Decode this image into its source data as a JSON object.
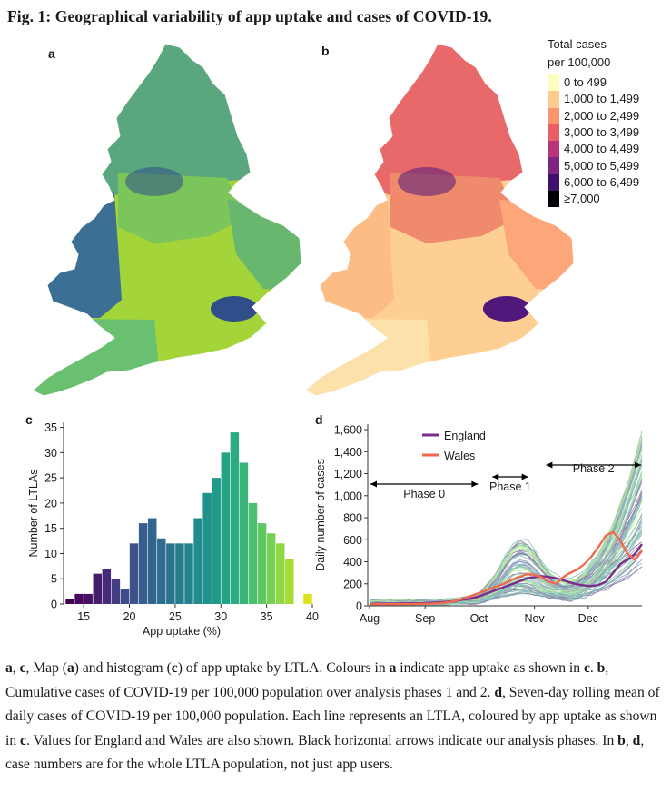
{
  "figure": {
    "title": "Fig. 1: Geographical variability of app uptake and cases of COVID-19.",
    "panel_labels": {
      "a": "a",
      "b": "b",
      "c": "c",
      "d": "d"
    }
  },
  "map_b_legend": {
    "title_line1": "Total cases",
    "title_line2": "per 100,000",
    "items": [
      {
        "label": "0 to 499",
        "color": "#fcfdbf"
      },
      {
        "label": "1,000 to 1,499",
        "color": "#fecb8f"
      },
      {
        "label": "2,000 to 2,499",
        "color": "#fb9570"
      },
      {
        "label": "3,000 to 3,499",
        "color": "#e85f66"
      },
      {
        "label": "4,000 to 4,499",
        "color": "#b63679"
      },
      {
        "label": "5,000 to 5,499",
        "color": "#7e2482"
      },
      {
        "label": "6,000 to 6,499",
        "color": "#40106d"
      },
      {
        "label": "≥7,000",
        "color": "#000004"
      }
    ]
  },
  "maps": {
    "a_colors": {
      "wales": "#3b6f94",
      "north": "#5aa67e",
      "midlands": "#7cc55b",
      "south": "#a3d43a",
      "east": "#69b66e",
      "southwest": "#68c070",
      "london": "#2f4e8a"
    },
    "b_colors": {
      "wales": "#fdbc84",
      "north": "#e8696a",
      "midlands": "#f08a6c",
      "south": "#fdcf93",
      "east": "#fca679",
      "southwest": "#fde1aa",
      "london": "#50187a"
    }
  },
  "chart_data": [
    {
      "type": "bar",
      "id": "c",
      "title": "",
      "xlabel": "App uptake (%)",
      "ylabel": "Number of LTLAs",
      "xlim": [
        13,
        40
      ],
      "ylim": [
        0,
        36
      ],
      "xticks": [
        15,
        20,
        25,
        30,
        35,
        40
      ],
      "yticks": [
        0,
        5,
        10,
        15,
        20,
        25,
        30,
        35
      ],
      "bin_width": 1,
      "bins": [
        13,
        14,
        15,
        16,
        17,
        18,
        19,
        20,
        21,
        22,
        23,
        24,
        25,
        26,
        27,
        28,
        29,
        30,
        31,
        32,
        33,
        34,
        35,
        36,
        37,
        38,
        39
      ],
      "values": [
        1,
        2,
        2,
        6,
        7,
        5,
        3,
        12,
        16,
        17,
        13,
        12,
        12,
        12,
        17,
        22,
        25,
        30,
        34,
        28,
        20,
        16,
        14,
        12,
        9,
        0,
        2
      ],
      "colors": [
        "#440154",
        "#46085c",
        "#471063",
        "#461d6d",
        "#472a7a",
        "#433d84",
        "#3e4c8a",
        "#3b528b",
        "#365d8d",
        "#32658e",
        "#2e6d8e",
        "#2b748e",
        "#287c8e",
        "#25838e",
        "#218b8d",
        "#1f928c",
        "#1f9a8a",
        "#22a386",
        "#2bab81",
        "#3ab47b",
        "#4cbf71",
        "#5ec962",
        "#75d054",
        "#8fd744",
        "#a8db34",
        "#c2df23",
        "#dde318"
      ]
    },
    {
      "type": "line",
      "id": "d",
      "ylabel": "Daily number of cases",
      "x_unit": "days since 1 Aug 2020",
      "xlim": [
        0,
        152
      ],
      "ylim": [
        0,
        1650
      ],
      "yticks": [
        0,
        200,
        400,
        600,
        800,
        1000,
        1200,
        1400,
        1600
      ],
      "ytick_labels": [
        "0",
        "200",
        "400",
        "600",
        "800",
        "1,000",
        "1,200",
        "1,400",
        "1,600"
      ],
      "xticks": [
        0,
        31,
        61,
        92,
        122
      ],
      "xtick_labels": [
        "Aug",
        "Sep",
        "Oct",
        "Nov",
        "Dec"
      ],
      "series": [
        {
          "name": "England",
          "color": "#7b2d8e",
          "x": [
            0,
            10,
            20,
            30,
            35,
            40,
            45,
            50,
            55,
            60,
            65,
            70,
            75,
            80,
            85,
            88,
            92,
            96,
            100,
            104,
            108,
            112,
            116,
            120,
            124,
            128,
            132,
            136,
            140,
            144,
            148,
            152
          ],
          "values": [
            18,
            20,
            22,
            25,
            28,
            32,
            40,
            50,
            62,
            80,
            110,
            140,
            170,
            200,
            230,
            250,
            260,
            270,
            262,
            250,
            232,
            212,
            195,
            185,
            180,
            190,
            220,
            300,
            380,
            420,
            470,
            560
          ]
        },
        {
          "name": "Wales",
          "color": "#f06a4f",
          "x": [
            0,
            10,
            20,
            30,
            35,
            40,
            45,
            50,
            55,
            60,
            65,
            70,
            75,
            80,
            85,
            88,
            92,
            96,
            100,
            104,
            108,
            112,
            116,
            120,
            124,
            128,
            132,
            136,
            140,
            144,
            148,
            152
          ],
          "values": [
            14,
            15,
            16,
            18,
            20,
            25,
            35,
            55,
            80,
            110,
            140,
            170,
            200,
            240,
            270,
            290,
            280,
            260,
            220,
            200,
            260,
            300,
            330,
            380,
            450,
            540,
            640,
            670,
            590,
            470,
            420,
            500
          ]
        }
      ],
      "legend": [
        "England",
        "Wales"
      ],
      "phases": [
        {
          "label": "Phase 0",
          "start": 0,
          "end": 61
        },
        {
          "label": "Phase 1",
          "start": 68,
          "end": 89
        },
        {
          "label": "Phase 2",
          "start": 98,
          "end": 152
        }
      ]
    }
  ],
  "caption": [
    {
      "t": "a",
      "b": true
    },
    {
      "t": ", ",
      "b": false
    },
    {
      "t": "c",
      "b": true
    },
    {
      "t": ", Map (",
      "b": false
    },
    {
      "t": "a",
      "b": true
    },
    {
      "t": ") and histogram (",
      "b": false
    },
    {
      "t": "c",
      "b": true
    },
    {
      "t": ") of app uptake by LTLA. Colours in ",
      "b": false
    },
    {
      "t": "a",
      "b": true
    },
    {
      "t": " indicate app uptake as shown in ",
      "b": false
    },
    {
      "t": "c",
      "b": true
    },
    {
      "t": ". ",
      "b": false
    },
    {
      "t": "b",
      "b": true
    },
    {
      "t": ", Cumulative cases of COVID-19 per 100,000 population over analysis phases 1 and 2. ",
      "b": false
    },
    {
      "t": "d",
      "b": true
    },
    {
      "t": ", Seven-day rolling mean of daily cases of COVID-19 per 100,000 population. Each line represents an LTLA, coloured by app uptake as shown in ",
      "b": false
    },
    {
      "t": "c",
      "b": true
    },
    {
      "t": ". Values for England and Wales are also shown. Black horizontal arrows indicate our analysis phases. In ",
      "b": false
    },
    {
      "t": "b",
      "b": true
    },
    {
      "t": ", ",
      "b": false
    },
    {
      "t": "d",
      "b": true
    },
    {
      "t": ", case numbers are for the whole LTLA population, not just app users.",
      "b": false
    }
  ]
}
